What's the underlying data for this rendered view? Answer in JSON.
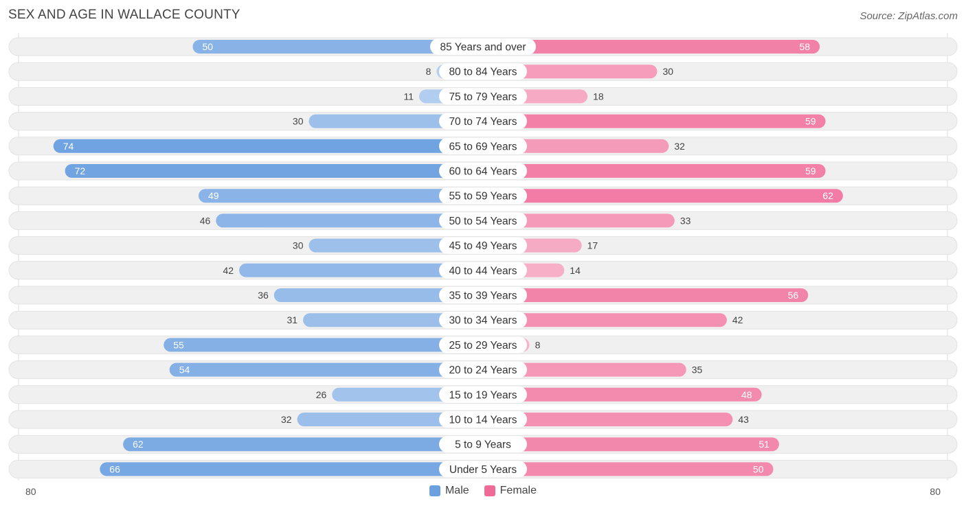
{
  "title": "SEX AND AGE IN WALLACE COUNTY",
  "source": "Source: ZipAtlas.com",
  "legend": {
    "male": "Male",
    "female": "Female"
  },
  "colors": {
    "male": "#6a9fe0",
    "female": "#f06a98",
    "row_bg": "#f0f0f0"
  },
  "axis": {
    "left_label": "80",
    "right_label": "80"
  },
  "chart_data": {
    "type": "bar",
    "orientation": "horizontal-diverging",
    "title": "SEX AND AGE IN WALLACE COUNTY",
    "xlim": [
      0,
      80
    ],
    "categories": [
      "85 Years and over",
      "80 to 84 Years",
      "75 to 79 Years",
      "70 to 74 Years",
      "65 to 69 Years",
      "60 to 64 Years",
      "55 to 59 Years",
      "50 to 54 Years",
      "45 to 49 Years",
      "40 to 44 Years",
      "35 to 39 Years",
      "30 to 34 Years",
      "25 to 29 Years",
      "20 to 24 Years",
      "15 to 19 Years",
      "10 to 14 Years",
      "5 to 9 Years",
      "Under 5 Years"
    ],
    "series": [
      {
        "name": "Male",
        "values": [
          50,
          8,
          11,
          30,
          74,
          72,
          49,
          46,
          30,
          42,
          36,
          31,
          55,
          54,
          26,
          32,
          62,
          66
        ]
      },
      {
        "name": "Female",
        "values": [
          58,
          30,
          18,
          59,
          32,
          59,
          62,
          33,
          17,
          14,
          56,
          42,
          8,
          35,
          48,
          43,
          51,
          50
        ]
      }
    ],
    "legend_position": "bottom-center"
  }
}
